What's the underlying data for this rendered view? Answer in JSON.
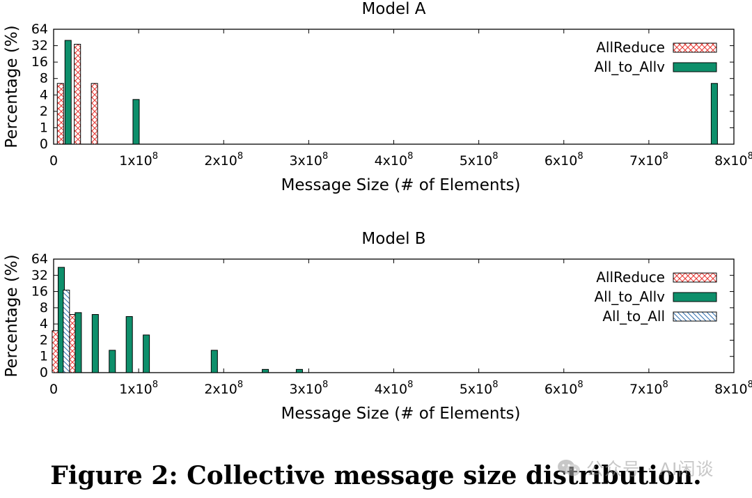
{
  "chart_data": [
    {
      "type": "bar",
      "title": "Model A",
      "xlabel": "Message Size (# of Elements)",
      "ylabel": "Percentage (%)",
      "xlim": [
        0,
        800000000
      ],
      "x_ticks": [
        {
          "value": 0,
          "mant": "0",
          "exp": ""
        },
        {
          "value": 100000000,
          "mant": "1x10",
          "exp": "8"
        },
        {
          "value": 200000000,
          "mant": "2x10",
          "exp": "8"
        },
        {
          "value": 300000000,
          "mant": "3x10",
          "exp": "8"
        },
        {
          "value": 400000000,
          "mant": "4x10",
          "exp": "8"
        },
        {
          "value": 500000000,
          "mant": "5x10",
          "exp": "8"
        },
        {
          "value": 600000000,
          "mant": "6x10",
          "exp": "8"
        },
        {
          "value": 700000000,
          "mant": "7x10",
          "exp": "8"
        },
        {
          "value": 800000000,
          "mant": "8x10",
          "exp": "8"
        }
      ],
      "y_scale": "log2",
      "y_ticks": [
        "0",
        "1",
        "2",
        "4",
        "8",
        "16",
        "32",
        "64"
      ],
      "legend_position": "top-right",
      "series": [
        {
          "name": "AllReduce",
          "pattern": "crosshatch",
          "color": "#e8342f",
          "x": [
            8000000,
            28000000,
            48000000
          ],
          "values": [
            6.5,
            34,
            6.5
          ]
        },
        {
          "name": "All_to_Allv",
          "pattern": "solid",
          "color": "#0e8f6b",
          "x": [
            17000000,
            97000000,
            777000000
          ],
          "values": [
            40,
            3.3,
            6.5
          ]
        }
      ]
    },
    {
      "type": "bar",
      "title": "Model B",
      "xlabel": "Message Size (# of Elements)",
      "ylabel": "Percentage (%)",
      "xlim": [
        0,
        800000000
      ],
      "x_ticks": [
        {
          "value": 0,
          "mant": "0",
          "exp": ""
        },
        {
          "value": 100000000,
          "mant": "1x10",
          "exp": "8"
        },
        {
          "value": 200000000,
          "mant": "2x10",
          "exp": "8"
        },
        {
          "value": 300000000,
          "mant": "3x10",
          "exp": "8"
        },
        {
          "value": 400000000,
          "mant": "4x10",
          "exp": "8"
        },
        {
          "value": 500000000,
          "mant": "5x10",
          "exp": "8"
        },
        {
          "value": 600000000,
          "mant": "6x10",
          "exp": "8"
        },
        {
          "value": 700000000,
          "mant": "7x10",
          "exp": "8"
        },
        {
          "value": 800000000,
          "mant": "8x10",
          "exp": "8"
        }
      ],
      "y_scale": "log2",
      "y_ticks": [
        "0",
        "1",
        "2",
        "4",
        "8",
        "16",
        "32",
        "64"
      ],
      "legend_position": "top-right",
      "series": [
        {
          "name": "AllReduce",
          "pattern": "crosshatch",
          "color": "#e8342f",
          "x": [
            2000000,
            22000000
          ],
          "values": [
            3.0,
            6.0
          ]
        },
        {
          "name": "All_to_Allv",
          "pattern": "solid",
          "color": "#0e8f6b",
          "x": [
            9000000,
            29000000,
            49000000,
            69000000,
            89000000,
            109000000,
            189000000,
            249000000,
            289000000
          ],
          "values": [
            45,
            6.5,
            6.0,
            1.3,
            5.5,
            2.5,
            1.3,
            0.2,
            0.2
          ]
        },
        {
          "name": "All_to_All",
          "pattern": "diagonal",
          "color": "#2f6fb0",
          "x": [
            15000000
          ],
          "values": [
            17
          ]
        }
      ]
    }
  ],
  "caption": "Figure 2: Collective message size distribution.",
  "watermark": "公众号 · AI闲谈"
}
